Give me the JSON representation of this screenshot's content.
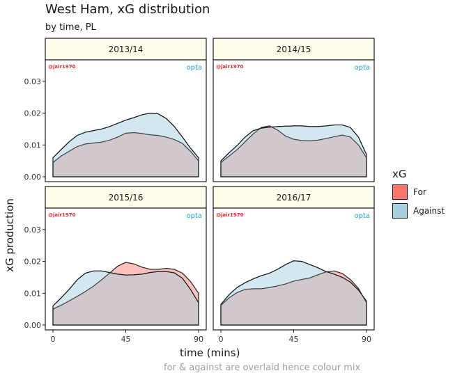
{
  "title": "West Ham, xG distribution",
  "subtitle": "by time, PL",
  "caption": "for & against are overlaid hence colour mix",
  "colors": {
    "for": "#f8766d",
    "against": "#a6cfe0",
    "strip_bg": "#fdfdea",
    "watermark": "#e03030",
    "opta": "#1ba2d8"
  },
  "chart_data": {
    "type": "area",
    "title": "West Ham, xG distribution",
    "subtitle": "by time, PL",
    "xlabel": "time (mins)",
    "ylabel": "xG production",
    "xlim": [
      0,
      90
    ],
    "ylim": [
      0,
      0.035
    ],
    "x_ticks": [
      "0",
      "45",
      "90"
    ],
    "y_ticks": [
      "0.00",
      "0.01",
      "0.02",
      "0.03"
    ],
    "legend": {
      "title": "xG",
      "position": "right",
      "entries": [
        "For",
        "Against"
      ]
    },
    "watermark": "@jair1970",
    "brand": "opta",
    "x": [
      0,
      5,
      10,
      15,
      20,
      25,
      30,
      35,
      40,
      45,
      50,
      55,
      60,
      65,
      70,
      75,
      80,
      85,
      90
    ],
    "panels": [
      {
        "label": "2013/14",
        "series": [
          {
            "name": "For",
            "values": [
              0.0045,
              0.0065,
              0.008,
              0.0095,
              0.0103,
              0.0106,
              0.0109,
              0.0115,
              0.0125,
              0.0137,
              0.0139,
              0.0136,
              0.0132,
              0.013,
              0.0125,
              0.0117,
              0.0105,
              0.008,
              0.005
            ]
          },
          {
            "name": "Against",
            "values": [
              0.006,
              0.0085,
              0.011,
              0.013,
              0.014,
              0.0145,
              0.015,
              0.0158,
              0.0168,
              0.0178,
              0.0186,
              0.0195,
              0.02,
              0.0198,
              0.0183,
              0.0158,
              0.0125,
              0.009,
              0.006
            ]
          }
        ]
      },
      {
        "label": "2014/15",
        "series": [
          {
            "name": "For",
            "values": [
              0.0045,
              0.0065,
              0.0085,
              0.011,
              0.0135,
              0.0155,
              0.016,
              0.0147,
              0.0128,
              0.0118,
              0.0114,
              0.0113,
              0.0115,
              0.012,
              0.0126,
              0.0131,
              0.0125,
              0.01,
              0.006
            ]
          },
          {
            "name": "Against",
            "values": [
              0.005,
              0.0075,
              0.0098,
              0.0125,
              0.0145,
              0.0153,
              0.0156,
              0.0158,
              0.0159,
              0.016,
              0.016,
              0.0158,
              0.0158,
              0.016,
              0.0163,
              0.0163,
              0.0155,
              0.0125,
              0.007
            ]
          }
        ]
      },
      {
        "label": "2015/16",
        "series": [
          {
            "name": "For",
            "values": [
              0.005,
              0.0062,
              0.0076,
              0.009,
              0.0105,
              0.0122,
              0.0142,
              0.0163,
              0.0185,
              0.0197,
              0.0192,
              0.0182,
              0.0175,
              0.0175,
              0.0178,
              0.0175,
              0.0163,
              0.0137,
              0.01
            ]
          },
          {
            "name": "Against",
            "values": [
              0.006,
              0.0085,
              0.0112,
              0.0142,
              0.0163,
              0.017,
              0.017,
              0.0165,
              0.016,
              0.0157,
              0.0158,
              0.016,
              0.0165,
              0.0168,
              0.0168,
              0.0164,
              0.0147,
              0.0112,
              0.007
            ]
          }
        ]
      },
      {
        "label": "2016/17",
        "series": [
          {
            "name": "For",
            "values": [
              0.0062,
              0.0085,
              0.0102,
              0.0112,
              0.0114,
              0.0114,
              0.0118,
              0.0123,
              0.0129,
              0.0138,
              0.0143,
              0.0148,
              0.0158,
              0.0167,
              0.017,
              0.0162,
              0.0143,
              0.0115,
              0.007
            ]
          },
          {
            "name": "Against",
            "values": [
              0.0065,
              0.0095,
              0.0118,
              0.0133,
              0.0145,
              0.0155,
              0.0163,
              0.0175,
              0.019,
              0.0202,
              0.02,
              0.019,
              0.018,
              0.0168,
              0.016,
              0.015,
              0.0135,
              0.011,
              0.0075
            ]
          }
        ]
      }
    ]
  }
}
